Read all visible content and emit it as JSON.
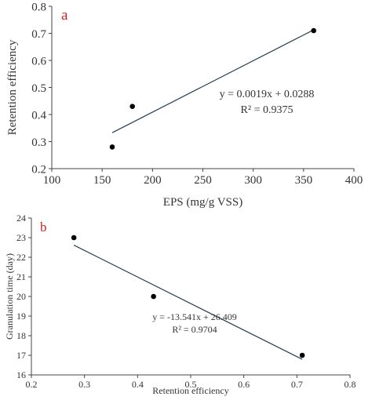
{
  "chart_data": [
    {
      "type": "scatter",
      "panel_label": "a",
      "panel_label_color": "#d21f1f",
      "xlabel": "EPS (mg/g VSS)",
      "ylabel": "Retention efficiency",
      "xlim": [
        100,
        400
      ],
      "ylim": [
        0.2,
        0.8
      ],
      "xticks": [
        "100",
        "150",
        "200",
        "250",
        "300",
        "350",
        "400"
      ],
      "yticks": [
        "0.2",
        "0.3",
        "0.4",
        "0.5",
        "0.6",
        "0.7",
        "0.8"
      ],
      "points": [
        {
          "x": 160,
          "y": 0.28
        },
        {
          "x": 180,
          "y": 0.43
        },
        {
          "x": 360,
          "y": 0.71
        }
      ],
      "trendline": {
        "x_start": 160,
        "x_end": 360,
        "slope": 0.0019,
        "intercept": 0.0288
      },
      "equation": "y = 0.0019x + 0.0288",
      "r_squared": "R² = 0.9375",
      "grid": false
    },
    {
      "type": "scatter",
      "panel_label": "b",
      "panel_label_color": "#d21f1f",
      "xlabel": "Retention efficiency",
      "ylabel": "Granulation time (day)",
      "xlim": [
        0.2,
        0.8
      ],
      "ylim": [
        16,
        24
      ],
      "xticks": [
        "0.2",
        "0.3",
        "0.4",
        "0.5",
        "0.6",
        "0.7",
        "0.8"
      ],
      "yticks": [
        "16",
        "17",
        "18",
        "19",
        "20",
        "21",
        "22",
        "23",
        "24"
      ],
      "points": [
        {
          "x": 0.28,
          "y": 23
        },
        {
          "x": 0.43,
          "y": 20
        },
        {
          "x": 0.71,
          "y": 17
        }
      ],
      "trendline": {
        "x_start": 0.28,
        "x_end": 0.71,
        "slope": -13.541,
        "intercept": 26.409
      },
      "equation": "y = -13.541x + 26.409",
      "r_squared": "R² = 0.9704",
      "grid": false
    }
  ]
}
